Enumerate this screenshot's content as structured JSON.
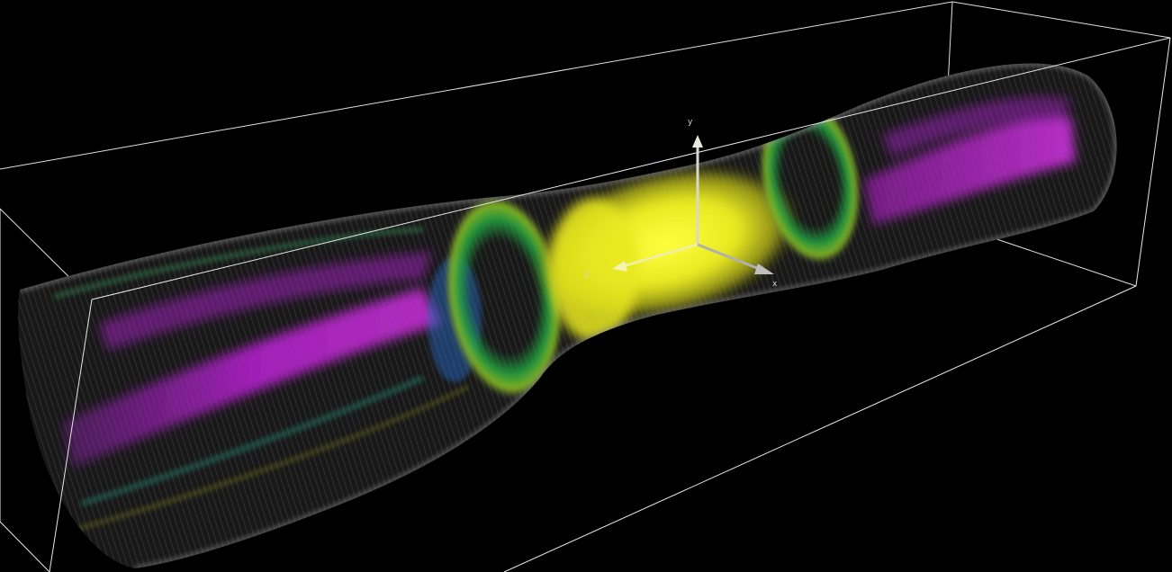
{
  "scene": {
    "type": "3d-volume-rendering",
    "background": "#000000",
    "bounding_box_color": "#e8e8e8",
    "colormap": [
      "#000000",
      "#808080",
      "#1e8c3c",
      "#2a6cc8",
      "#b020c8",
      "#f0f020"
    ],
    "volume_description": "tube-with-constriction",
    "axes": {
      "x": {
        "label": "x",
        "color": "#b0b0b0"
      },
      "y": {
        "label": "y",
        "color": "#d8d8d0"
      },
      "z": {
        "label": "z",
        "color": "#f0f0a0"
      }
    }
  }
}
